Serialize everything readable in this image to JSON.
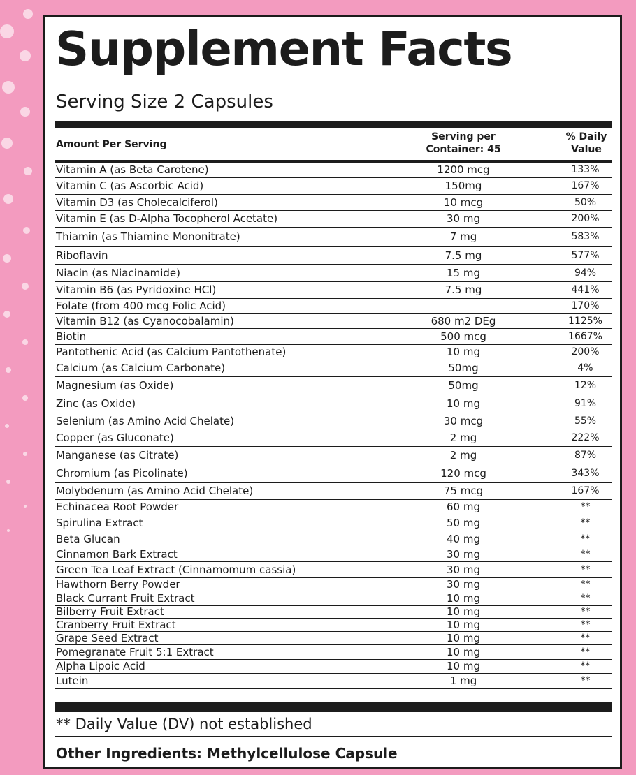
{
  "title": "Supplement Facts",
  "serving_size": "Serving Size 2 Capsules",
  "table": {
    "header": [
      "Amount Per Serving",
      "Serving per Container: 45",
      "% Daily Value"
    ],
    "rows": [
      [
        "Vitamin A (as Beta Carotene)",
        "1200 mcg",
        "133%"
      ],
      [
        "Vitamin C (as Ascorbic Acid)",
        "150mg",
        "167%"
      ],
      [
        "Vitamin D3 (as Cholecalciferol)",
        "10 mcg",
        "50%"
      ],
      [
        "Vitamin E (as D-Alpha Tocopherol Acetate)",
        "30 mg",
        "200%"
      ],
      [
        "Thiamin (as Thiamine Mononitrate)",
        "7 mg",
        "583%"
      ],
      [
        "Riboflavin",
        "7.5 mg",
        "577%"
      ],
      [
        "Niacin (as Niacinamide)",
        "15 mg",
        "94%"
      ],
      [
        "Vitamin B6 (as Pyridoxine HCl)",
        "7.5 mg",
        "441%"
      ],
      [
        "Folate (from 400 mcg Folic Acid)",
        null,
        "170%"
      ],
      [
        "Vitamin B12 (as Cyanocobalamin)",
        "680 m2 DEg",
        "1125%"
      ],
      [
        "Biotin",
        "500 mcg",
        "1667%"
      ],
      [
        "Pantothenic Acid (as Calcium Pantothenate)",
        "10 mg",
        "200%"
      ],
      [
        "Calcium (as Calcium Carbonate)",
        "50mg",
        "4%"
      ],
      [
        "Magnesium (as Oxide)",
        "50mg",
        "12%"
      ],
      [
        "Zinc (as Oxide)",
        "10 mg",
        "91%"
      ],
      [
        "Selenium (as Amino Acid Chelate)",
        "30 mcg",
        "55%"
      ],
      [
        "Copper (as Gluconate)",
        "2 mg",
        "222%"
      ],
      [
        "Manganese (as Citrate)",
        "2 mg",
        "87%"
      ],
      [
        "Chromium (as Picolinate)",
        "120 mcg",
        "343%"
      ],
      [
        "Molybdenum (as Amino Acid Chelate)",
        "75 mcg",
        "167%"
      ],
      [
        "Echinacea Root Powder",
        "60 mg",
        "**"
      ],
      [
        "Spirulina Extract",
        "50 mg",
        "**"
      ],
      [
        "Beta Glucan",
        "40 mg",
        "**"
      ],
      [
        "Cinnamon Bark Extract",
        "30 mg",
        "**"
      ],
      [
        "Green Tea Leaf Extract (Cinnamomum cassia)",
        "30 mg",
        "**"
      ],
      [
        "Hawthorn Berry Powder",
        "30 mg",
        "**"
      ],
      [
        "Black Currant Fruit Extract",
        "10 mg",
        "**"
      ],
      [
        "Bilberry Fruit Extract",
        "10 mg",
        "**"
      ],
      [
        "Cranberry Fruit Extract",
        "10 mg",
        "**"
      ],
      [
        "Grape Seed Extract",
        "10 mg",
        "**"
      ],
      [
        "Pomegranate Fruit 5:1 Extract",
        "10 mg",
        "**"
      ],
      [
        "Alpha Lipoic Acid",
        "10 mg",
        "**"
      ],
      [
        "Lutein",
        "1 mg",
        "**"
      ]
    ]
  },
  "footnote": "** Daily Value (DV) not established",
  "other_ingredients": "Other Ingredients: Methylcellulose Capsule"
}
